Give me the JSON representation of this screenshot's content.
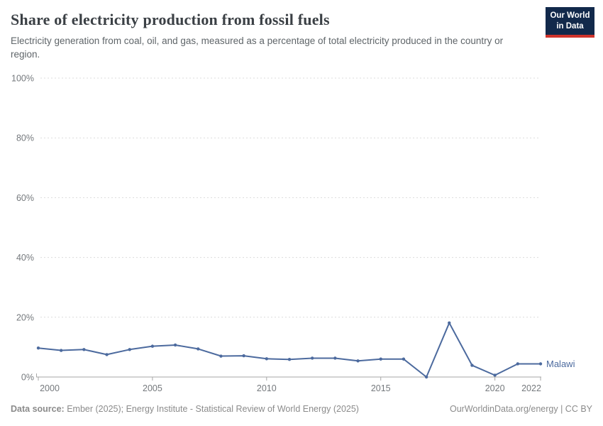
{
  "header": {
    "title": "Share of electricity production from fossil fuels",
    "subtitle": "Electricity generation from coal, oil, and gas, measured as a percentage of total electricity produced in the country or region.",
    "logo": {
      "line1": "Our World",
      "line2": "in Data",
      "bg_color": "#12294b",
      "stripe_color": "#d0342c"
    }
  },
  "chart_data": {
    "type": "line",
    "title": "Share of electricity production from fossil fuels",
    "xlabel": "",
    "ylabel": "",
    "x": [
      2000,
      2001,
      2002,
      2003,
      2004,
      2005,
      2006,
      2007,
      2008,
      2009,
      2010,
      2011,
      2012,
      2013,
      2014,
      2015,
      2016,
      2017,
      2018,
      2019,
      2020,
      2021,
      2022
    ],
    "series": [
      {
        "name": "Malawi",
        "color": "#4c6a9e",
        "values": [
          9.7,
          8.9,
          9.2,
          7.5,
          9.2,
          10.3,
          10.7,
          9.4,
          7.0,
          7.1,
          6.1,
          5.9,
          6.3,
          6.3,
          5.4,
          6.0,
          6.0,
          0.0,
          18.1,
          3.9,
          0.6,
          4.4,
          4.4
        ]
      }
    ],
    "ylim": [
      0,
      100
    ],
    "y_ticks": [
      0,
      20,
      40,
      60,
      80,
      100
    ],
    "y_tick_suffix": "%",
    "x_ticks": [
      2000,
      2005,
      2010,
      2015,
      2020,
      2022
    ],
    "grid": "horizontal-dashed",
    "legend_position": "end-of-line-label",
    "colors": {
      "grid": "#dcdcdc",
      "axis": "#a7a7a7",
      "tick_label": "#75797d"
    }
  },
  "footer": {
    "source_label": "Data source:",
    "source_text": " Ember (2025); Energy Institute - Statistical Review of World Energy (2025)",
    "link": "OurWorldinData.org/energy | CC BY"
  }
}
